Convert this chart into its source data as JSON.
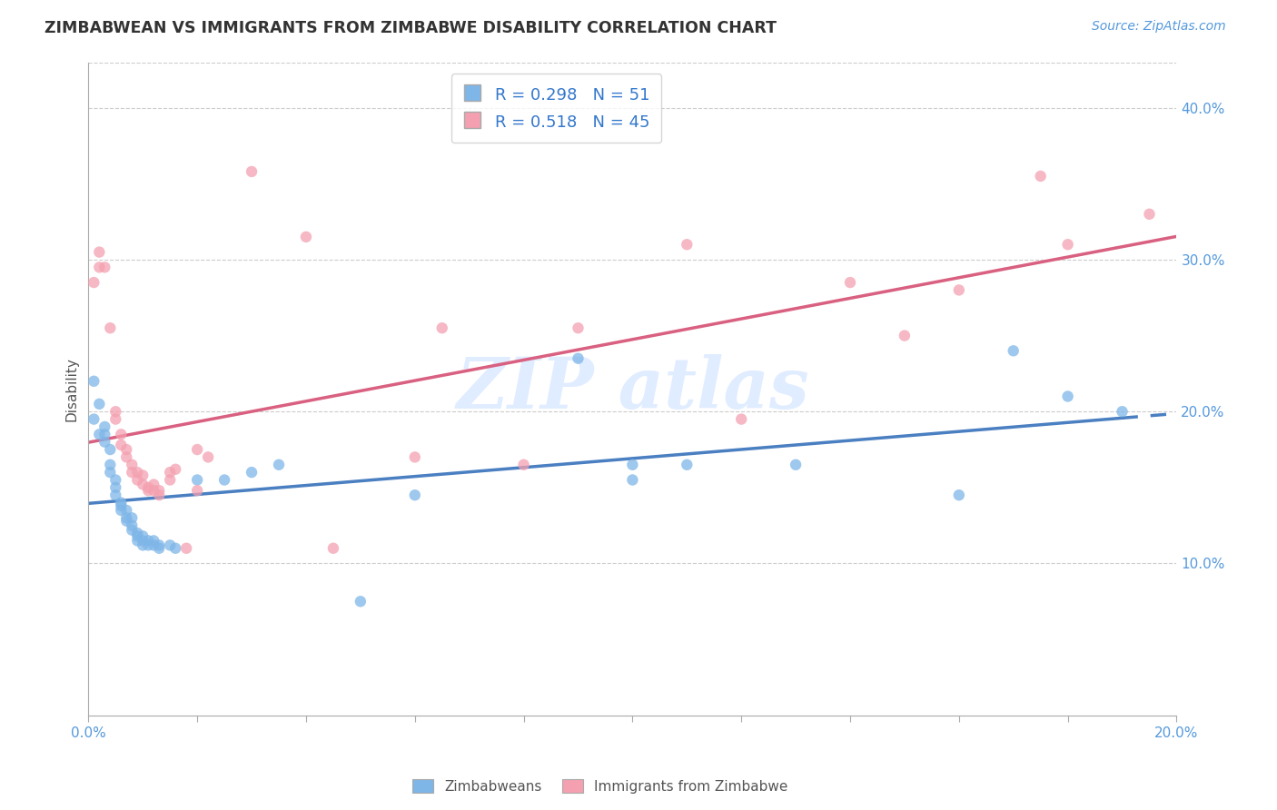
{
  "title": "ZIMBABWEAN VS IMMIGRANTS FROM ZIMBABWE DISABILITY CORRELATION CHART",
  "source": "Source: ZipAtlas.com",
  "ylabel": "Disability",
  "xlim": [
    0.0,
    0.2
  ],
  "ylim": [
    0.0,
    0.43
  ],
  "yticks": [
    0.1,
    0.2,
    0.3,
    0.4
  ],
  "ytick_labels": [
    "10.0%",
    "20.0%",
    "30.0%",
    "40.0%"
  ],
  "legend1_label": "R = 0.298   N = 51",
  "legend2_label": "R = 0.518   N = 45",
  "blue_color": "#7EB6E8",
  "pink_color": "#F4A0B0",
  "blue_line_color": "#4A7FC1",
  "pink_line_color": "#D96080",
  "blue_scatter": [
    [
      0.001,
      0.22
    ],
    [
      0.001,
      0.195
    ],
    [
      0.002,
      0.205
    ],
    [
      0.002,
      0.185
    ],
    [
      0.003,
      0.19
    ],
    [
      0.003,
      0.185
    ],
    [
      0.003,
      0.18
    ],
    [
      0.004,
      0.175
    ],
    [
      0.004,
      0.165
    ],
    [
      0.004,
      0.16
    ],
    [
      0.005,
      0.155
    ],
    [
      0.005,
      0.15
    ],
    [
      0.005,
      0.145
    ],
    [
      0.006,
      0.14
    ],
    [
      0.006,
      0.138
    ],
    [
      0.006,
      0.135
    ],
    [
      0.007,
      0.135
    ],
    [
      0.007,
      0.13
    ],
    [
      0.007,
      0.128
    ],
    [
      0.008,
      0.13
    ],
    [
      0.008,
      0.125
    ],
    [
      0.008,
      0.122
    ],
    [
      0.009,
      0.12
    ],
    [
      0.009,
      0.118
    ],
    [
      0.009,
      0.115
    ],
    [
      0.01,
      0.118
    ],
    [
      0.01,
      0.115
    ],
    [
      0.01,
      0.112
    ],
    [
      0.011,
      0.115
    ],
    [
      0.011,
      0.112
    ],
    [
      0.012,
      0.115
    ],
    [
      0.012,
      0.112
    ],
    [
      0.013,
      0.112
    ],
    [
      0.013,
      0.11
    ],
    [
      0.015,
      0.112
    ],
    [
      0.016,
      0.11
    ],
    [
      0.02,
      0.155
    ],
    [
      0.025,
      0.155
    ],
    [
      0.03,
      0.16
    ],
    [
      0.035,
      0.165
    ],
    [
      0.05,
      0.075
    ],
    [
      0.06,
      0.145
    ],
    [
      0.09,
      0.235
    ],
    [
      0.1,
      0.155
    ],
    [
      0.1,
      0.165
    ],
    [
      0.11,
      0.165
    ],
    [
      0.13,
      0.165
    ],
    [
      0.16,
      0.145
    ],
    [
      0.17,
      0.24
    ],
    [
      0.18,
      0.21
    ],
    [
      0.19,
      0.2
    ]
  ],
  "pink_scatter": [
    [
      0.001,
      0.285
    ],
    [
      0.002,
      0.295
    ],
    [
      0.002,
      0.305
    ],
    [
      0.003,
      0.295
    ],
    [
      0.004,
      0.255
    ],
    [
      0.005,
      0.2
    ],
    [
      0.005,
      0.195
    ],
    [
      0.006,
      0.185
    ],
    [
      0.006,
      0.178
    ],
    [
      0.007,
      0.175
    ],
    [
      0.007,
      0.17
    ],
    [
      0.008,
      0.165
    ],
    [
      0.008,
      0.16
    ],
    [
      0.009,
      0.16
    ],
    [
      0.009,
      0.155
    ],
    [
      0.01,
      0.158
    ],
    [
      0.01,
      0.152
    ],
    [
      0.011,
      0.15
    ],
    [
      0.011,
      0.148
    ],
    [
      0.012,
      0.152
    ],
    [
      0.012,
      0.148
    ],
    [
      0.013,
      0.148
    ],
    [
      0.013,
      0.145
    ],
    [
      0.015,
      0.16
    ],
    [
      0.015,
      0.155
    ],
    [
      0.016,
      0.162
    ],
    [
      0.018,
      0.11
    ],
    [
      0.02,
      0.148
    ],
    [
      0.02,
      0.175
    ],
    [
      0.022,
      0.17
    ],
    [
      0.03,
      0.358
    ],
    [
      0.04,
      0.315
    ],
    [
      0.045,
      0.11
    ],
    [
      0.06,
      0.17
    ],
    [
      0.065,
      0.255
    ],
    [
      0.08,
      0.165
    ],
    [
      0.09,
      0.255
    ],
    [
      0.11,
      0.31
    ],
    [
      0.12,
      0.195
    ],
    [
      0.14,
      0.285
    ],
    [
      0.15,
      0.25
    ],
    [
      0.16,
      0.28
    ],
    [
      0.175,
      0.355
    ],
    [
      0.18,
      0.31
    ],
    [
      0.195,
      0.33
    ]
  ],
  "background_color": "#FFFFFF",
  "grid_color": "#CCCCCC"
}
